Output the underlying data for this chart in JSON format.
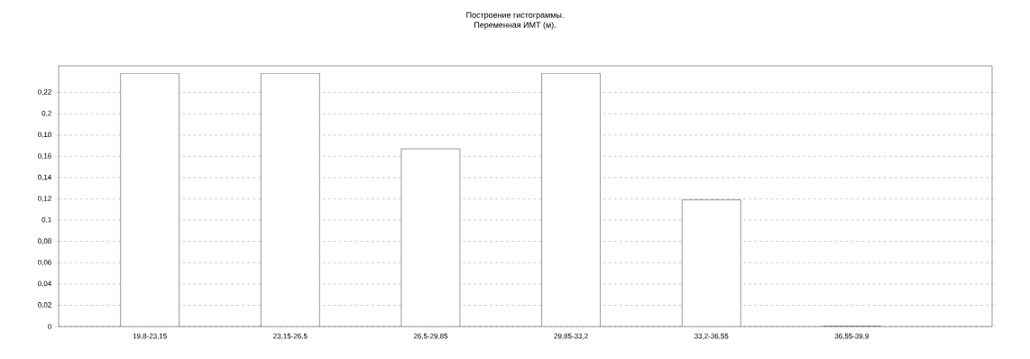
{
  "chart_data": {
    "type": "bar",
    "title": "Построение гистограммы.",
    "subtitle": "Переменная ИМТ (м).",
    "categories": [
      "19,8-23,15",
      "23,15-26,5",
      "26,5-29,85",
      "29,85-33,2",
      "33,2-36,55",
      "36,55-39,9"
    ],
    "values": [
      0.238,
      0.238,
      0.167,
      0.238,
      0.119,
      0
    ],
    "color": "#ffffff",
    "ylim": [
      0,
      0.245
    ],
    "yticks": [
      0,
      {
        "value": 0.02,
        "label": "0,02"
      },
      {
        "value": 0.04,
        "label": "0,04"
      },
      {
        "value": 0.06,
        "label": "0,06"
      },
      {
        "value": 0.08,
        "label": "0,08"
      },
      {
        "value": 0.1,
        "label": "0,1"
      },
      {
        "value": 0.12,
        "label": "0,12"
      },
      {
        "value": 0.14,
        "label": "0,14"
      },
      {
        "value": 0.16,
        "label": "0,16"
      },
      {
        "value": 0.18,
        "label": "0,18"
      },
      {
        "value": 0.2,
        "label": "0,2"
      },
      {
        "value": 0.22,
        "label": "0,22"
      }
    ],
    "grid": "y"
  }
}
